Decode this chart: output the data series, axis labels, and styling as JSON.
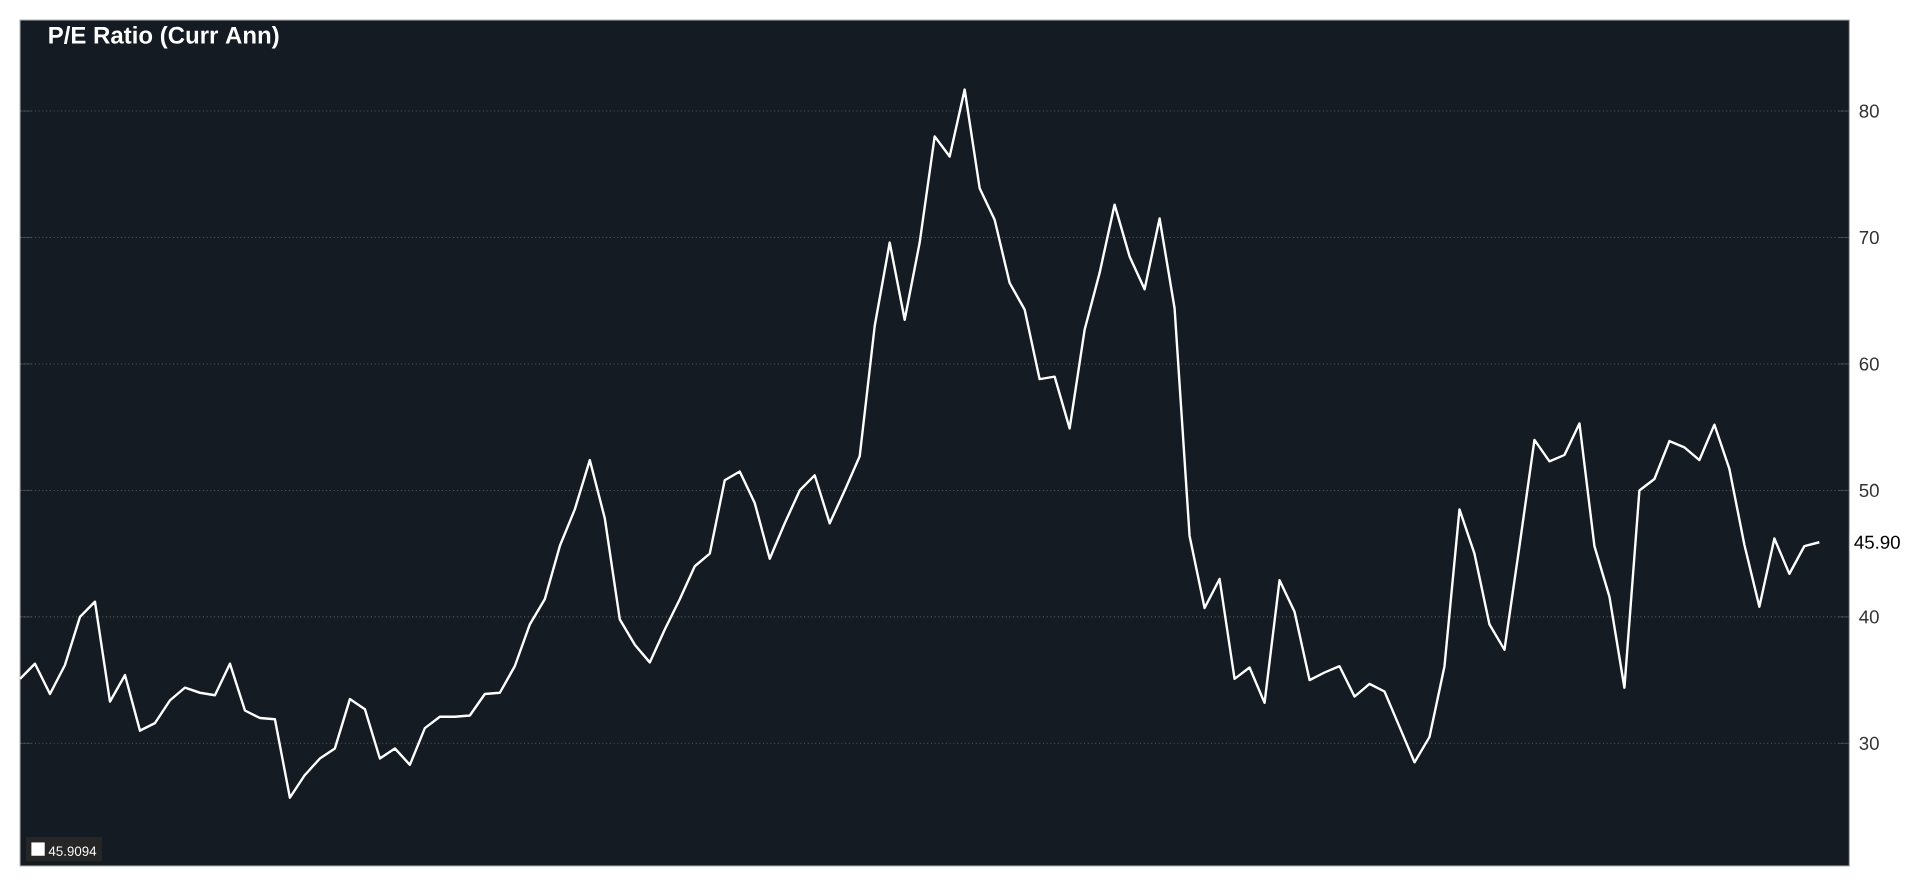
{
  "chart_data": {
    "type": "line",
    "title": "P/E Ratio (Curr Ann)",
    "categories": [
      null,
      null,
      null,
      null,
      null,
      null,
      null,
      null,
      null,
      null,
      null,
      null,
      null,
      null,
      null,
      null,
      null,
      null,
      null,
      null,
      null,
      null,
      null,
      null,
      null,
      null,
      null,
      null,
      null,
      null,
      null,
      null,
      null,
      null,
      null,
      null,
      null,
      null,
      null,
      null,
      null,
      null,
      null,
      null,
      null,
      null,
      null,
      null,
      null,
      null,
      null,
      null,
      null,
      null,
      null,
      null,
      null,
      null,
      null,
      null,
      null,
      null,
      null,
      null,
      null,
      null,
      null,
      null,
      null,
      null,
      null,
      null,
      null,
      null,
      null,
      null,
      null,
      null,
      null,
      null,
      null,
      null,
      null,
      null,
      null,
      null,
      null,
      null,
      null,
      null,
      null,
      null,
      null,
      null,
      null,
      null,
      null,
      null,
      null,
      null,
      null,
      null,
      null,
      null,
      null,
      null,
      null,
      null,
      null,
      null,
      null,
      null,
      null,
      null,
      null,
      null,
      null,
      null,
      null,
      null,
      null
    ],
    "series": [
      {
        "color": "#ffffff",
        "values": [
          35.1,
          36.3,
          33.9,
          36.2,
          40.0,
          41.2,
          33.3,
          35.4,
          31.0,
          31.6,
          33.4,
          34.4,
          34.0,
          33.8,
          36.3,
          32.6,
          32.0,
          31.9,
          25.7,
          27.5,
          28.8,
          29.6,
          33.5,
          32.7,
          28.8,
          29.6,
          28.3,
          31.2,
          32.1,
          32.1,
          32.2,
          33.9,
          34.0,
          36.1,
          39.4,
          41.4,
          45.6,
          48.5,
          52.4,
          47.8,
          39.8,
          37.8,
          36.4,
          39.0,
          41.4,
          44.0,
          45.0,
          50.8,
          51.5,
          49.0,
          44.6,
          47.4,
          50.0,
          51.2,
          47.4,
          50.0,
          52.7,
          63.0,
          69.6,
          63.5,
          69.6,
          78.0,
          76.4,
          81.7,
          73.9,
          71.4,
          66.4,
          64.3,
          58.8,
          59.0,
          54.9,
          62.7,
          67.2,
          72.6,
          68.5,
          65.9,
          71.5,
          64.4,
          46.4,
          40.7,
          43.0,
          35.1,
          36.0,
          33.2,
          42.9,
          40.4,
          35.0,
          35.6,
          36.1,
          33.7,
          34.7,
          34.1,
          31.3,
          28.5,
          30.5,
          36.1,
          48.5,
          45.0,
          39.4,
          37.4,
          45.6,
          54.0,
          52.3,
          52.8,
          55.3,
          45.6,
          41.6,
          34.4,
          50.0,
          50.9,
          53.9,
          53.4,
          52.4,
          55.2,
          51.7,
          45.7,
          40.8,
          46.2,
          43.4,
          45.6,
          45.9
        ]
      }
    ],
    "ylim": [
      20.3,
      87.2
    ],
    "yticks": [
      30,
      40,
      50,
      60,
      70,
      80
    ],
    "grid": "y",
    "tick_labels": "y",
    "legend": false,
    "annotations": [
      "45.9094",
      {
        "text": "45.90",
        "y": 45.9
      }
    ]
  }
}
